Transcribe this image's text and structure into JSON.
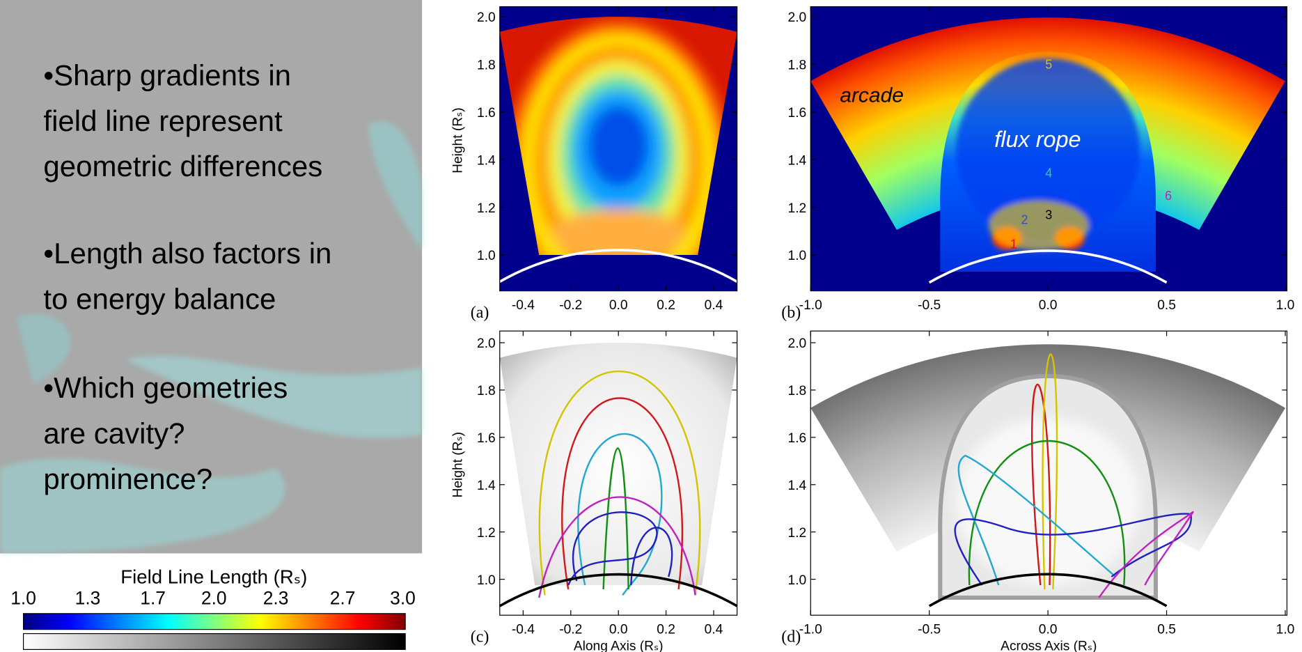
{
  "slide": {
    "bullets": [
      [
        "•Sharp gradients in",
        "field line represent",
        "geometric differences"
      ],
      [
        "•Length also factors in",
        "to energy balance"
      ],
      [
        "•Which geometries",
        "are cavity?",
        "prominence?"
      ]
    ],
    "colorbar": {
      "title": "Field Line Length (Rₛ)",
      "ticks": [
        "1.0",
        "1.3",
        "1.7",
        "2.0",
        "2.3",
        "2.7",
        "3.0"
      ]
    },
    "panels": [
      {
        "label": "(a)",
        "y_label": "Height (Rₛ)",
        "yticks": [
          "2.0",
          "1.8",
          "1.6",
          "1.4",
          "1.2",
          "1.0"
        ],
        "xticks": [
          "-0.4",
          "-0.2",
          "0.0",
          "0.2",
          "0.4"
        ]
      },
      {
        "label": "(b)",
        "yticks": [
          "2.0",
          "1.8",
          "1.6",
          "1.4",
          "1.2",
          "1.0"
        ],
        "xticks": [
          "-1.0",
          "-0.5",
          "0.0",
          "0.5",
          "1.0"
        ]
      },
      {
        "label": "(c)",
        "y_label": "Height (Rₛ)",
        "x_label": "Along Axis (Rₛ)",
        "yticks": [
          "2.0",
          "1.8",
          "1.6",
          "1.4",
          "1.2",
          "1.0"
        ],
        "xticks": [
          "-0.4",
          "-0.2",
          "0.0",
          "0.2",
          "0.4"
        ]
      },
      {
        "label": "(d)",
        "x_label": "Across Axis (Rₛ)",
        "yticks": [
          "2.0",
          "1.8",
          "1.6",
          "1.4",
          "1.2",
          "1.0"
        ],
        "xticks": [
          "-1.0",
          "-0.5",
          "0.0",
          "0.5",
          "1.0"
        ]
      }
    ],
    "annotations": {
      "arcade": "arcade",
      "flux_rope": "flux rope",
      "markers": [
        "1",
        "2",
        "3",
        "4",
        "5",
        "6"
      ]
    }
  }
}
